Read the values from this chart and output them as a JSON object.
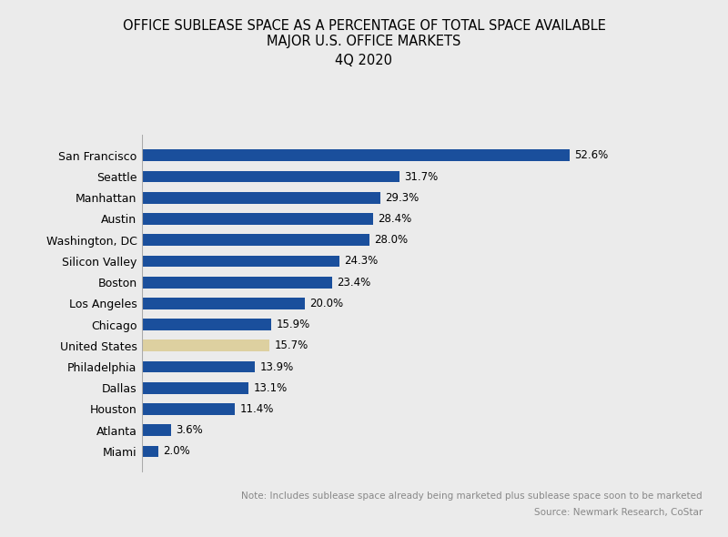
{
  "title_line1": "OFFICE SUBLEASE SPACE AS A PERCENTAGE OF TOTAL SPACE AVAILABLE",
  "title_line2": "MAJOR U.S. OFFICE MARKETS",
  "title_line3": "4Q 2020",
  "categories": [
    "San Francisco",
    "Seattle",
    "Manhattan",
    "Austin",
    "Washington, DC",
    "Silicon Valley",
    "Boston",
    "Los Angeles",
    "Chicago",
    "United States",
    "Philadelphia",
    "Dallas",
    "Houston",
    "Atlanta",
    "Miami"
  ],
  "values": [
    52.6,
    31.7,
    29.3,
    28.4,
    28.0,
    24.3,
    23.4,
    20.0,
    15.9,
    15.7,
    13.9,
    13.1,
    11.4,
    3.6,
    2.0
  ],
  "bar_colors": [
    "#1a4f9c",
    "#1a4f9c",
    "#1a4f9c",
    "#1a4f9c",
    "#1a4f9c",
    "#1a4f9c",
    "#1a4f9c",
    "#1a4f9c",
    "#1a4f9c",
    "#ddd0a0",
    "#1a4f9c",
    "#1a4f9c",
    "#1a4f9c",
    "#1a4f9c",
    "#1a4f9c"
  ],
  "background_color": "#ebebeb",
  "xlim": [
    0,
    60
  ],
  "note": "Note: Includes sublease space already being marketed plus sublease space soon to be marketed",
  "source": "Source: Newmark Research, CoStar",
  "title_fontsize": 10.5,
  "label_fontsize": 8.5,
  "category_fontsize": 9,
  "note_fontsize": 7.5
}
